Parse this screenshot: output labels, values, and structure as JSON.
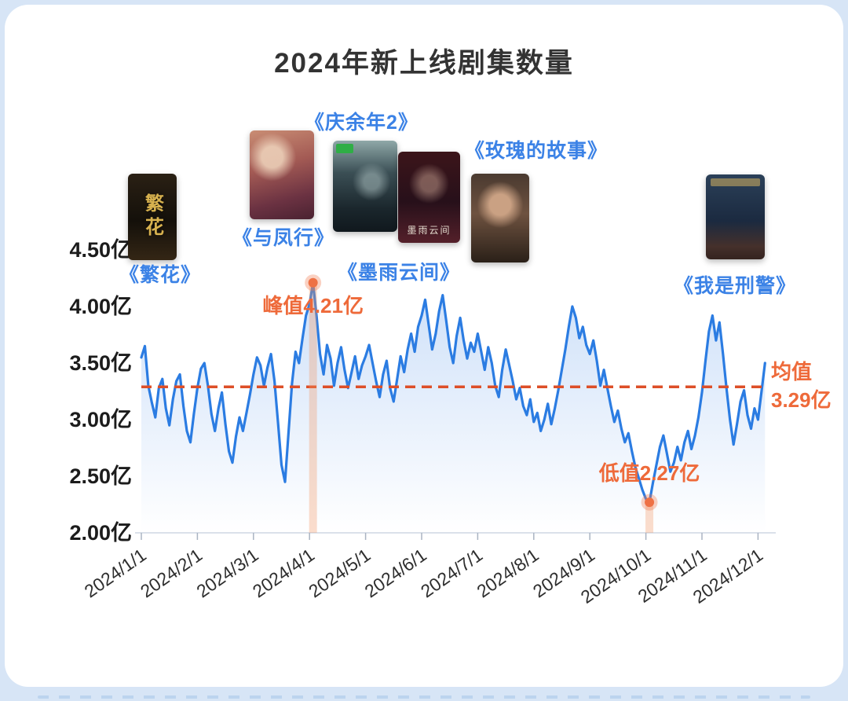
{
  "page": {
    "title": "2024年新上线剧集数量"
  },
  "chart_data": {
    "type": "line",
    "title": "2024年新上线剧集数量",
    "x_tick_labels": [
      "2024/1/1",
      "2024/2/1",
      "2024/3/1",
      "2024/4/1",
      "2024/5/1",
      "2024/6/1",
      "2024/7/1",
      "2024/8/1",
      "2024/9/1",
      "2024/10/1",
      "2024/11/1",
      "2024/12/1"
    ],
    "y_tick_labels": [
      "4.50亿",
      "4.00亿",
      "3.50亿",
      "3.00亿",
      "2.50亿",
      "2.00亿"
    ],
    "y_ticks": [
      4.5,
      4.0,
      3.5,
      3.0,
      2.5,
      2.0
    ],
    "ylim": [
      2.0,
      4.5
    ],
    "unit": "亿",
    "points_per_month": 16,
    "values": [
      3.55,
      3.65,
      3.3,
      3.15,
      3.02,
      3.28,
      3.36,
      3.1,
      2.95,
      3.18,
      3.34,
      3.4,
      3.12,
      2.9,
      2.8,
      3.05,
      3.28,
      3.45,
      3.5,
      3.3,
      3.05,
      2.9,
      3.1,
      3.24,
      2.96,
      2.72,
      2.62,
      2.85,
      3.02,
      2.9,
      3.06,
      3.22,
      3.4,
      3.55,
      3.48,
      3.3,
      3.46,
      3.58,
      3.34,
      2.98,
      2.6,
      2.45,
      2.88,
      3.32,
      3.6,
      3.5,
      3.72,
      3.92,
      4.02,
      4.21,
      3.92,
      3.58,
      3.4,
      3.66,
      3.54,
      3.3,
      3.5,
      3.64,
      3.44,
      3.28,
      3.42,
      3.56,
      3.36,
      3.48,
      3.56,
      3.66,
      3.5,
      3.34,
      3.2,
      3.4,
      3.52,
      3.28,
      3.16,
      3.36,
      3.56,
      3.42,
      3.62,
      3.76,
      3.6,
      3.82,
      3.92,
      4.06,
      3.84,
      3.62,
      3.76,
      3.96,
      4.1,
      3.88,
      3.64,
      3.5,
      3.74,
      3.9,
      3.7,
      3.54,
      3.68,
      3.6,
      3.76,
      3.6,
      3.44,
      3.64,
      3.5,
      3.3,
      3.2,
      3.44,
      3.62,
      3.48,
      3.34,
      3.18,
      3.28,
      3.12,
      3.04,
      3.18,
      2.98,
      3.06,
      2.9,
      3.0,
      3.14,
      2.96,
      3.1,
      3.26,
      3.44,
      3.62,
      3.82,
      4.0,
      3.9,
      3.72,
      3.82,
      3.66,
      3.58,
      3.7,
      3.52,
      3.3,
      3.44,
      3.28,
      3.12,
      2.98,
      3.08,
      2.92,
      2.8,
      2.88,
      2.72,
      2.58,
      2.48,
      2.38,
      2.3,
      2.27,
      2.44,
      2.6,
      2.76,
      2.86,
      2.7,
      2.54,
      2.62,
      2.76,
      2.64,
      2.8,
      2.9,
      2.74,
      2.86,
      3.02,
      3.24,
      3.52,
      3.78,
      3.92,
      3.7,
      3.86,
      3.58,
      3.28,
      3.0,
      2.78,
      2.96,
      3.16,
      3.26,
      3.04,
      2.92,
      3.1,
      3.0,
      3.25,
      3.5
    ],
    "mean": {
      "value": 3.29,
      "label_line1": "均值",
      "label_line2": "3.29亿"
    },
    "peak": {
      "value": 4.21,
      "index": 49,
      "label": "峰值4.21亿"
    },
    "low": {
      "value": 2.27,
      "index": 145,
      "label": "低值2.27亿"
    },
    "line_color": "#2b7ce2",
    "mean_color": "#dd4f28",
    "annotation_color": "#ee6a3a",
    "marker_color": "#ee7145"
  },
  "posters": [
    {
      "id": "fanhua",
      "label": "《繁花》",
      "inner": "繁花"
    },
    {
      "id": "yufengxing",
      "label": "《与凤行》",
      "inner": ""
    },
    {
      "id": "qingyunian2",
      "label": "《庆余年2》",
      "inner": ""
    },
    {
      "id": "moyuyunjian",
      "label": "《墨雨云间》",
      "inner": "墨雨云间"
    },
    {
      "id": "meigui",
      "label": "《玫瑰的故事》",
      "inner": ""
    },
    {
      "id": "woshixingjing",
      "label": "《我是刑警》",
      "inner": ""
    }
  ]
}
